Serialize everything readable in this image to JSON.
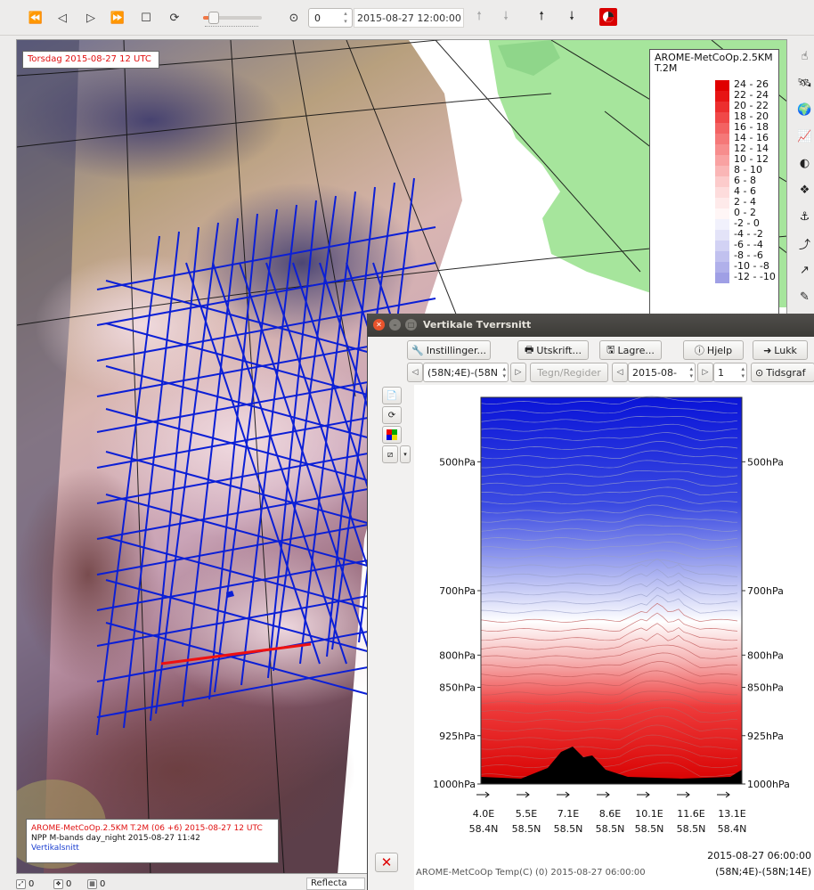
{
  "toolbar": {
    "frame_value": "0",
    "time_display": "2015-08-27 12:00:00",
    "icons": [
      "rewind-icon",
      "step-back-icon",
      "play-icon",
      "fast-forward-icon",
      "stop-icon",
      "loop-icon",
      "clock-icon",
      "arrow-up-icon",
      "arrow-down-icon",
      "pie-icon"
    ]
  },
  "map": {
    "time_label": "Torsdag 2015-08-27 12 UTC",
    "info_lines": [
      "AROME-MetCoOp.2.5KM T.2M (06 +6) 2015-08-27 12 UTC",
      "NPP M-bands day_night 2015-08-27 11:42",
      "Vertikalsnitt"
    ],
    "colors": {
      "cross_sections": "#0b1fd6",
      "selected_section": "#ee1111",
      "land": "#a6e59c",
      "sea": "#ffffff"
    }
  },
  "legend": {
    "title_line1": "AROME-MetCoOp.2.5KM",
    "title_line2": "T.2M",
    "ranges": [
      "24 - 26",
      "22 - 24",
      "20 - 22",
      "18 - 20",
      "16 - 18",
      "14 - 16",
      "12 - 14",
      "10 - 12",
      "8 - 10",
      "6 - 8",
      "4 - 6",
      "2 - 4",
      "0 - 2",
      "-2 - 0",
      "-4 - -2",
      "-6 - -4",
      "-8 - -6",
      "-10 - -8",
      "-12 - -10"
    ],
    "colors": [
      "#e00000",
      "#e71414",
      "#ec2e2e",
      "#f04848",
      "#f36262",
      "#f57878",
      "#f78d8d",
      "#f9a2a2",
      "#fab6b6",
      "#fccbcb",
      "#fddcdc",
      "#feeaea",
      "#fff6f6",
      "#f1f1fc",
      "#e3e3f8",
      "#d2d2f4",
      "#c1c1ef",
      "#b0b0ea",
      "#9f9fe5"
    ]
  },
  "statusbar": {
    "counts": [
      "0",
      "0",
      "0"
    ],
    "dropdown": "Reflecta"
  },
  "dialog": {
    "title": "Vertikale Tverrsnitt",
    "buttons": {
      "settings": "Instillinger...",
      "print": "Utskrift...",
      "save": "Lagre...",
      "help": "Hjelp",
      "close": "Lukk",
      "draw": "Tegn/Regider",
      "timegraph": "Tidsgraf"
    },
    "section_select": "(58N;4E)-(58N",
    "time_select": "2015-08-",
    "step_value": "1"
  },
  "chart_data": {
    "type": "heatmap",
    "title": "",
    "variable": "Temp(C)",
    "model": "AROME-MetCoOp",
    "valid_time": "2015-08-27 06:00:00",
    "section_name": "(58N;4E)-(58N;14E)",
    "footer_left": "AROME-MetCoOp   Temp(C)   (0) 2015-08-27 06:00:00",
    "pressure_levels": [
      "500hPa",
      "700hPa",
      "800hPa",
      "850hPa",
      "925hPa",
      "1000hPa"
    ],
    "pressure_values": [
      500,
      700,
      800,
      850,
      925,
      1000
    ],
    "x_lon": [
      "4.0E",
      "5.5E",
      "7.1E",
      "8.6E",
      "10.1E",
      "11.6E",
      "13.1E"
    ],
    "x_lat": [
      "58.4N",
      "58.5N",
      "58.5N",
      "58.5N",
      "58.5N",
      "58.5N",
      "58.4N"
    ],
    "colorscale": [
      "#0a14d8",
      "#ffffff",
      "#e00000"
    ]
  }
}
